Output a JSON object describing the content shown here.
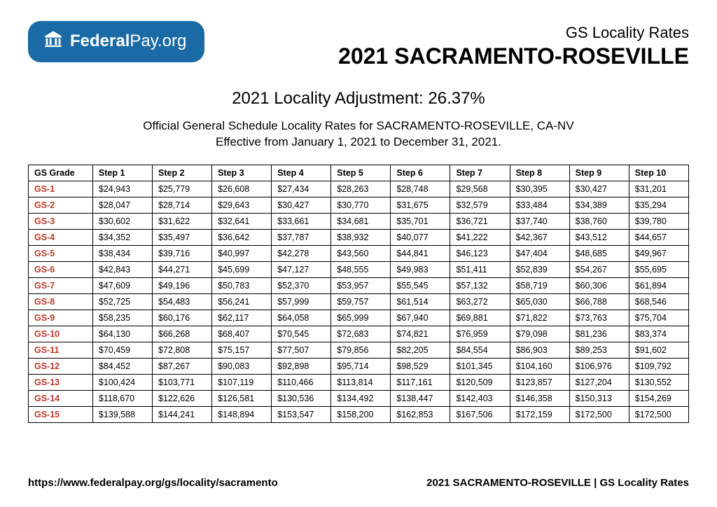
{
  "logo": {
    "text_bold": "Federal",
    "text_regular": "Pay.org",
    "background_color": "#1a6aa5",
    "text_color": "#ffffff"
  },
  "header": {
    "subtitle": "GS Locality Rates",
    "title": "2021 SACRAMENTO-ROSEVILLE"
  },
  "adjustment_line": "2021 Locality Adjustment: 26.37%",
  "description_line1": "Official General Schedule Locality Rates for SACRAMENTO-ROSEVILLE, CA-NV",
  "description_line2": "Effective from January 1, 2021 to December 31, 2021.",
  "table": {
    "columns": [
      "GS Grade",
      "Step 1",
      "Step 2",
      "Step 3",
      "Step 4",
      "Step 5",
      "Step 6",
      "Step 7",
      "Step 8",
      "Step 9",
      "Step 10"
    ],
    "grade_color": "#c0392b",
    "border_color": "#000000",
    "rows": [
      {
        "grade": "GS-1",
        "cells": [
          "$24,943",
          "$25,779",
          "$26,608",
          "$27,434",
          "$28,263",
          "$28,748",
          "$29,568",
          "$30,395",
          "$30,427",
          "$31,201"
        ]
      },
      {
        "grade": "GS-2",
        "cells": [
          "$28,047",
          "$28,714",
          "$29,643",
          "$30,427",
          "$30,770",
          "$31,675",
          "$32,579",
          "$33,484",
          "$34,389",
          "$35,294"
        ]
      },
      {
        "grade": "GS-3",
        "cells": [
          "$30,602",
          "$31,622",
          "$32,641",
          "$33,661",
          "$34,681",
          "$35,701",
          "$36,721",
          "$37,740",
          "$38,760",
          "$39,780"
        ]
      },
      {
        "grade": "GS-4",
        "cells": [
          "$34,352",
          "$35,497",
          "$36,642",
          "$37,787",
          "$38,932",
          "$40,077",
          "$41,222",
          "$42,367",
          "$43,512",
          "$44,657"
        ]
      },
      {
        "grade": "GS-5",
        "cells": [
          "$38,434",
          "$39,716",
          "$40,997",
          "$42,278",
          "$43,560",
          "$44,841",
          "$46,123",
          "$47,404",
          "$48,685",
          "$49,967"
        ]
      },
      {
        "grade": "GS-6",
        "cells": [
          "$42,843",
          "$44,271",
          "$45,699",
          "$47,127",
          "$48,555",
          "$49,983",
          "$51,411",
          "$52,839",
          "$54,267",
          "$55,695"
        ]
      },
      {
        "grade": "GS-7",
        "cells": [
          "$47,609",
          "$49,196",
          "$50,783",
          "$52,370",
          "$53,957",
          "$55,545",
          "$57,132",
          "$58,719",
          "$60,306",
          "$61,894"
        ]
      },
      {
        "grade": "GS-8",
        "cells": [
          "$52,725",
          "$54,483",
          "$56,241",
          "$57,999",
          "$59,757",
          "$61,514",
          "$63,272",
          "$65,030",
          "$66,788",
          "$68,546"
        ]
      },
      {
        "grade": "GS-9",
        "cells": [
          "$58,235",
          "$60,176",
          "$62,117",
          "$64,058",
          "$65,999",
          "$67,940",
          "$69,881",
          "$71,822",
          "$73,763",
          "$75,704"
        ]
      },
      {
        "grade": "GS-10",
        "cells": [
          "$64,130",
          "$66,268",
          "$68,407",
          "$70,545",
          "$72,683",
          "$74,821",
          "$76,959",
          "$79,098",
          "$81,236",
          "$83,374"
        ]
      },
      {
        "grade": "GS-11",
        "cells": [
          "$70,459",
          "$72,808",
          "$75,157",
          "$77,507",
          "$79,856",
          "$82,205",
          "$84,554",
          "$86,903",
          "$89,253",
          "$91,602"
        ]
      },
      {
        "grade": "GS-12",
        "cells": [
          "$84,452",
          "$87,267",
          "$90,083",
          "$92,898",
          "$95,714",
          "$98,529",
          "$101,345",
          "$104,160",
          "$106,976",
          "$109,792"
        ]
      },
      {
        "grade": "GS-13",
        "cells": [
          "$100,424",
          "$103,771",
          "$107,119",
          "$110,466",
          "$113,814",
          "$117,161",
          "$120,509",
          "$123,857",
          "$127,204",
          "$130,552"
        ]
      },
      {
        "grade": "GS-14",
        "cells": [
          "$118,670",
          "$122,626",
          "$126,581",
          "$130,536",
          "$134,492",
          "$138,447",
          "$142,403",
          "$146,358",
          "$150,313",
          "$154,269"
        ]
      },
      {
        "grade": "GS-15",
        "cells": [
          "$139,588",
          "$144,241",
          "$148,894",
          "$153,547",
          "$158,200",
          "$162,853",
          "$167,506",
          "$172,159",
          "$172,500",
          "$172,500"
        ]
      }
    ]
  },
  "footer": {
    "left": "https://www.federalpay.org/gs/locality/sacramento",
    "right": "2021 SACRAMENTO-ROSEVILLE | GS Locality Rates"
  }
}
